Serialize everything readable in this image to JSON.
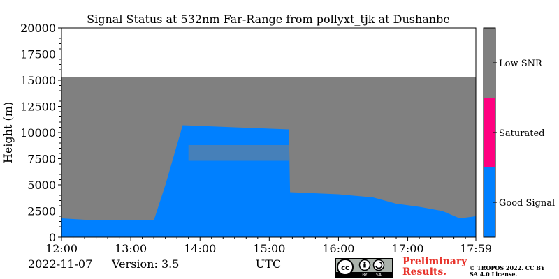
{
  "chart_data": {
    "type": "heatmap",
    "title": "Signal Status at 532nm Far-Range from pollyxt_tjk at Dushanbe",
    "xlabel": "UTC",
    "ylabel": "Height (m)",
    "xlim": [
      "12:00",
      "17:59"
    ],
    "ylim": [
      0,
      20000
    ],
    "x_ticks": [
      "12:00",
      "13:00",
      "14:00",
      "15:00",
      "16:00",
      "17:00",
      "17:59"
    ],
    "y_ticks": [
      0,
      2500,
      5000,
      7500,
      10000,
      12500,
      15000,
      17500,
      20000
    ],
    "data_top_height_m": 15300,
    "categories": [
      "Good Signal",
      "Saturated",
      "Low SNR"
    ],
    "category_colors": [
      "#0080ff",
      "#ff0080",
      "#808080"
    ],
    "good_signal_layer_top": [
      {
        "time": "12:00",
        "height": 1800
      },
      {
        "time": "12:30",
        "height": 1600
      },
      {
        "time": "13:20",
        "height": 1600
      },
      {
        "time": "13:30",
        "height": 5000
      },
      {
        "time": "13:45",
        "height": 10700
      },
      {
        "time": "14:30",
        "height": 10500
      },
      {
        "time": "15:17",
        "height": 10300
      },
      {
        "time": "15:18",
        "height": 4300
      },
      {
        "time": "16:00",
        "height": 4100
      },
      {
        "time": "16:30",
        "height": 3800
      },
      {
        "time": "16:50",
        "height": 3200
      },
      {
        "time": "17:10",
        "height": 2900
      },
      {
        "time": "17:30",
        "height": 2500
      },
      {
        "time": "17:45",
        "height": 1800
      },
      {
        "time": "17:59",
        "height": 2000
      }
    ],
    "low_snr_band_within_good": [
      {
        "time": "13:50",
        "height_min": 7300,
        "height_max": 8800
      },
      {
        "time": "15:17",
        "height_min": 7300,
        "height_max": 8800
      }
    ]
  },
  "colorbar": {
    "labels": [
      "Low SNR",
      "Saturated",
      "Good Signal"
    ],
    "colors": [
      "#808080",
      "#ff0080",
      "#0080ff"
    ]
  },
  "footer": {
    "date": "2022-11-07",
    "version": "Version: 3.5",
    "preliminary": "Preliminary Results.",
    "copyright": "© TROPOS 2022. CC BY SA 4.0 License.",
    "cc_badge": [
      "cc",
      "BY",
      "SA"
    ]
  }
}
